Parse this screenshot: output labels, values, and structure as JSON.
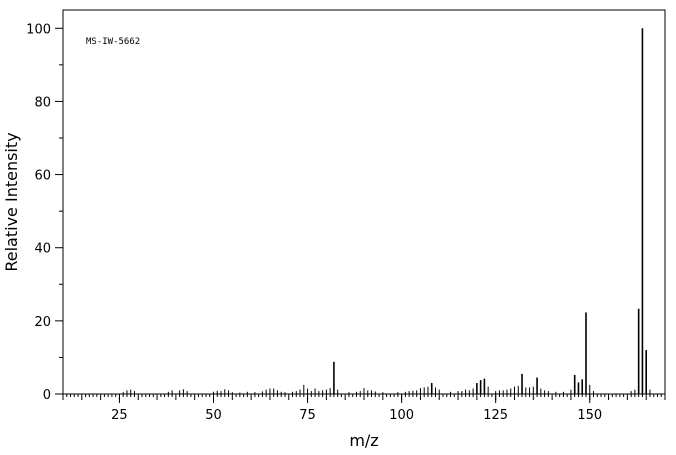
{
  "chart_data": {
    "type": "bar",
    "title": "",
    "annotation": "MS-IW-5662",
    "xlabel": "m/z",
    "ylabel": "Relative Intensity",
    "xlim": [
      10,
      170
    ],
    "ylim": [
      0,
      105
    ],
    "x_ticks": [
      25,
      50,
      75,
      100,
      125,
      150
    ],
    "y_ticks": [
      0,
      20,
      40,
      60,
      80,
      100
    ],
    "grid": false,
    "legend": "none",
    "colors": {
      "bars": "#000000",
      "axes": "#000000",
      "background": "#ffffff"
    },
    "series": [
      {
        "points": [
          {
            "x": 26,
            "y": 0.5
          },
          {
            "x": 27,
            "y": 1.0
          },
          {
            "x": 28,
            "y": 1.2
          },
          {
            "x": 29,
            "y": 0.8
          },
          {
            "x": 38,
            "y": 0.6
          },
          {
            "x": 39,
            "y": 1.0
          },
          {
            "x": 41,
            "y": 1.0
          },
          {
            "x": 42,
            "y": 1.3
          },
          {
            "x": 43,
            "y": 0.8
          },
          {
            "x": 50,
            "y": 0.6
          },
          {
            "x": 51,
            "y": 0.9
          },
          {
            "x": 52,
            "y": 0.8
          },
          {
            "x": 53,
            "y": 1.3
          },
          {
            "x": 54,
            "y": 1.0
          },
          {
            "x": 55,
            "y": 0.5
          },
          {
            "x": 57,
            "y": 0.4
          },
          {
            "x": 59,
            "y": 0.6
          },
          {
            "x": 61,
            "y": 0.5
          },
          {
            "x": 63,
            "y": 0.7
          },
          {
            "x": 64,
            "y": 1.2
          },
          {
            "x": 65,
            "y": 1.5
          },
          {
            "x": 66,
            "y": 1.5
          },
          {
            "x": 67,
            "y": 1.0
          },
          {
            "x": 68,
            "y": 0.6
          },
          {
            "x": 69,
            "y": 0.5
          },
          {
            "x": 71,
            "y": 0.6
          },
          {
            "x": 72,
            "y": 0.8
          },
          {
            "x": 73,
            "y": 1.2
          },
          {
            "x": 74,
            "y": 2.5
          },
          {
            "x": 75,
            "y": 1.5
          },
          {
            "x": 76,
            "y": 0.8
          },
          {
            "x": 77,
            "y": 1.5
          },
          {
            "x": 78,
            "y": 0.8
          },
          {
            "x": 79,
            "y": 1.0
          },
          {
            "x": 80,
            "y": 1.2
          },
          {
            "x": 81,
            "y": 1.6
          },
          {
            "x": 82,
            "y": 8.8
          },
          {
            "x": 83,
            "y": 1.2
          },
          {
            "x": 86,
            "y": 0.5
          },
          {
            "x": 88,
            "y": 0.6
          },
          {
            "x": 89,
            "y": 0.8
          },
          {
            "x": 90,
            "y": 1.6
          },
          {
            "x": 91,
            "y": 1.0
          },
          {
            "x": 92,
            "y": 1.0
          },
          {
            "x": 93,
            "y": 0.7
          },
          {
            "x": 95,
            "y": 0.5
          },
          {
            "x": 99,
            "y": 0.5
          },
          {
            "x": 101,
            "y": 0.6
          },
          {
            "x": 102,
            "y": 0.8
          },
          {
            "x": 103,
            "y": 0.9
          },
          {
            "x": 104,
            "y": 1.0
          },
          {
            "x": 105,
            "y": 1.6
          },
          {
            "x": 106,
            "y": 1.8
          },
          {
            "x": 107,
            "y": 2.0
          },
          {
            "x": 108,
            "y": 3.0
          },
          {
            "x": 109,
            "y": 1.8
          },
          {
            "x": 110,
            "y": 1.2
          },
          {
            "x": 113,
            "y": 0.6
          },
          {
            "x": 115,
            "y": 0.8
          },
          {
            "x": 116,
            "y": 0.8
          },
          {
            "x": 117,
            "y": 1.2
          },
          {
            "x": 118,
            "y": 1.0
          },
          {
            "x": 119,
            "y": 1.5
          },
          {
            "x": 120,
            "y": 3.0
          },
          {
            "x": 121,
            "y": 3.8
          },
          {
            "x": 122,
            "y": 4.2
          },
          {
            "x": 123,
            "y": 2.0
          },
          {
            "x": 125,
            "y": 0.8
          },
          {
            "x": 126,
            "y": 1.0
          },
          {
            "x": 127,
            "y": 1.0
          },
          {
            "x": 128,
            "y": 1.2
          },
          {
            "x": 129,
            "y": 1.5
          },
          {
            "x": 130,
            "y": 2.0
          },
          {
            "x": 131,
            "y": 2.2
          },
          {
            "x": 132,
            "y": 5.5
          },
          {
            "x": 133,
            "y": 1.8
          },
          {
            "x": 134,
            "y": 1.8
          },
          {
            "x": 135,
            "y": 2.0
          },
          {
            "x": 136,
            "y": 4.5
          },
          {
            "x": 137,
            "y": 1.5
          },
          {
            "x": 138,
            "y": 1.0
          },
          {
            "x": 139,
            "y": 0.8
          },
          {
            "x": 141,
            "y": 0.6
          },
          {
            "x": 143,
            "y": 0.6
          },
          {
            "x": 145,
            "y": 1.2
          },
          {
            "x": 146,
            "y": 5.2
          },
          {
            "x": 147,
            "y": 3.2
          },
          {
            "x": 148,
            "y": 4.0
          },
          {
            "x": 149,
            "y": 22.3
          },
          {
            "x": 150,
            "y": 2.5
          },
          {
            "x": 151,
            "y": 0.8
          },
          {
            "x": 161,
            "y": 0.8
          },
          {
            "x": 162,
            "y": 1.2
          },
          {
            "x": 163,
            "y": 23.3
          },
          {
            "x": 164,
            "y": 100
          },
          {
            "x": 165,
            "y": 12.0
          },
          {
            "x": 166,
            "y": 1.2
          }
        ]
      }
    ]
  }
}
